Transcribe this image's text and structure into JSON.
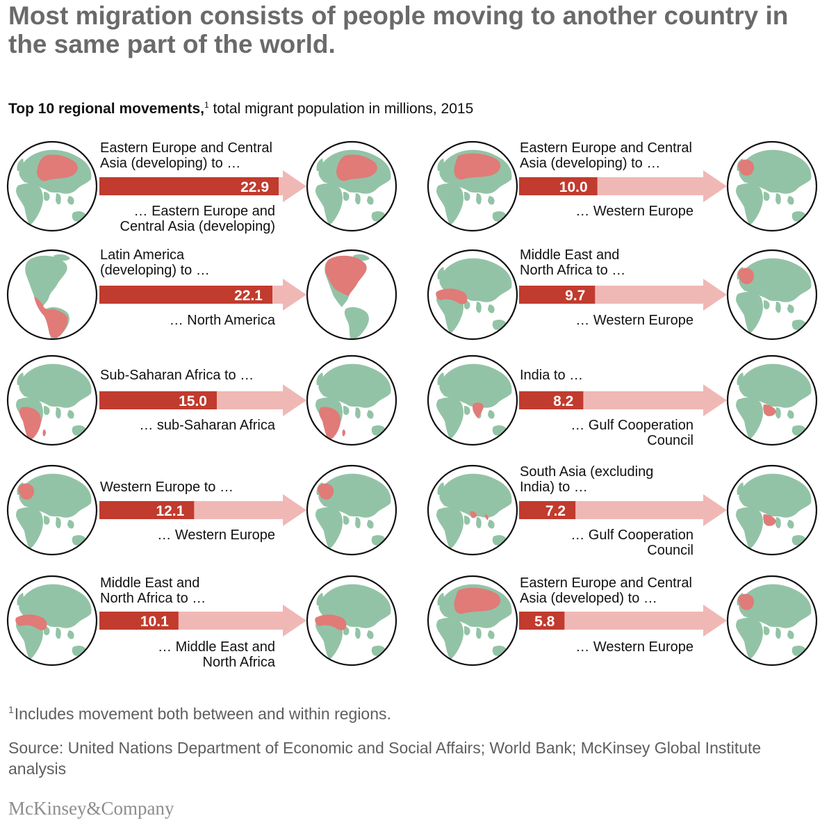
{
  "title": "Most migration consists of people moving to another country in the same part of the world.",
  "subtitle": {
    "bold": "Top 10 regional movements,",
    "sup": "1",
    "rest": " total migrant population in millions, 2015"
  },
  "footnote": {
    "num": "1",
    "text": "Includes movement both between and within regions."
  },
  "source": "Source: United Nations Department of Economic and Social Affairs; World Bank; McKinsey Global Institute analysis",
  "logo": "McKinsey&Company",
  "colors": {
    "bar_dark": "#c13b2e",
    "bar_light": "#f0b8b5",
    "land": "#93c3a6",
    "highlight": "#e07b78",
    "globe_border": "#111111"
  },
  "chart_data": {
    "type": "bar",
    "unit": "millions",
    "scale_max": 22.9,
    "movements": [
      {
        "rank": 1,
        "origin": "Eastern Europe and Central Asia (developing) to …",
        "destination": "… Eastern Europe and Central Asia (developing)",
        "value": 22.9,
        "label": "22.9"
      },
      {
        "rank": 2,
        "origin": "Latin America (developing) to …",
        "destination": "… North America",
        "value": 22.1,
        "label": "22.1"
      },
      {
        "rank": 3,
        "origin": "Sub-Saharan Africa to …",
        "destination": "… sub-Saharan Africa",
        "value": 15.0,
        "label": "15.0"
      },
      {
        "rank": 4,
        "origin": "Western Europe to …",
        "destination": "… Western Europe",
        "value": 12.1,
        "label": "12.1"
      },
      {
        "rank": 5,
        "origin": "Middle East and North Africa to …",
        "destination": "… Middle East and North Africa",
        "value": 10.1,
        "label": "10.1"
      },
      {
        "rank": 6,
        "origin": "Eastern Europe and Central Asia (developing) to …",
        "destination": "… Western Europe",
        "value": 10.0,
        "label": "10.0"
      },
      {
        "rank": 7,
        "origin": "Middle East and North Africa to …",
        "destination": "… Western Europe",
        "value": 9.7,
        "label": "9.7"
      },
      {
        "rank": 8,
        "origin": "India to …",
        "destination": "… Gulf Cooperation Council",
        "value": 8.2,
        "label": "8.2"
      },
      {
        "rank": 9,
        "origin": "South Asia (excluding India) to …",
        "destination": "… Gulf Cooperation Council",
        "value": 7.2,
        "label": "7.2"
      },
      {
        "rank": 10,
        "origin": "Eastern Europe and Central Asia (developed) to …",
        "destination": "… Western Europe",
        "value": 5.8,
        "label": "5.8"
      }
    ]
  }
}
